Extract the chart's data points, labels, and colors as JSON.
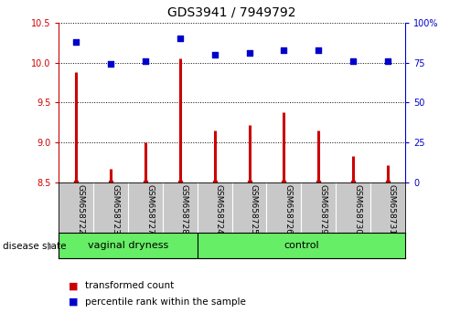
{
  "title": "GDS3941 / 7949792",
  "samples": [
    "GSM658722",
    "GSM658723",
    "GSM658727",
    "GSM658728",
    "GSM658724",
    "GSM658725",
    "GSM658726",
    "GSM658729",
    "GSM658730",
    "GSM658731"
  ],
  "transformed_count": [
    9.88,
    8.67,
    9.0,
    10.05,
    9.15,
    9.22,
    9.38,
    9.15,
    8.83,
    8.72
  ],
  "percentile_rank": [
    88,
    74,
    76,
    90,
    80,
    81,
    83,
    83,
    76,
    76
  ],
  "ylim_left": [
    8.5,
    10.5
  ],
  "ylim_right": [
    0,
    100
  ],
  "yticks_left": [
    8.5,
    9.0,
    9.5,
    10.0,
    10.5
  ],
  "yticks_right": [
    0,
    25,
    50,
    75,
    100
  ],
  "bar_color": "#cc0000",
  "dot_color": "#0000cc",
  "group1_label": "vaginal dryness",
  "group2_label": "control",
  "group1_count": 4,
  "group2_count": 6,
  "disease_state_label": "disease state",
  "legend_bar_label": "transformed count",
  "legend_dot_label": "percentile rank within the sample",
  "group_bg_color": "#66ee66",
  "tick_label_area_color": "#c8c8c8",
  "bar_linewidth": 2.2,
  "dot_size": 18
}
